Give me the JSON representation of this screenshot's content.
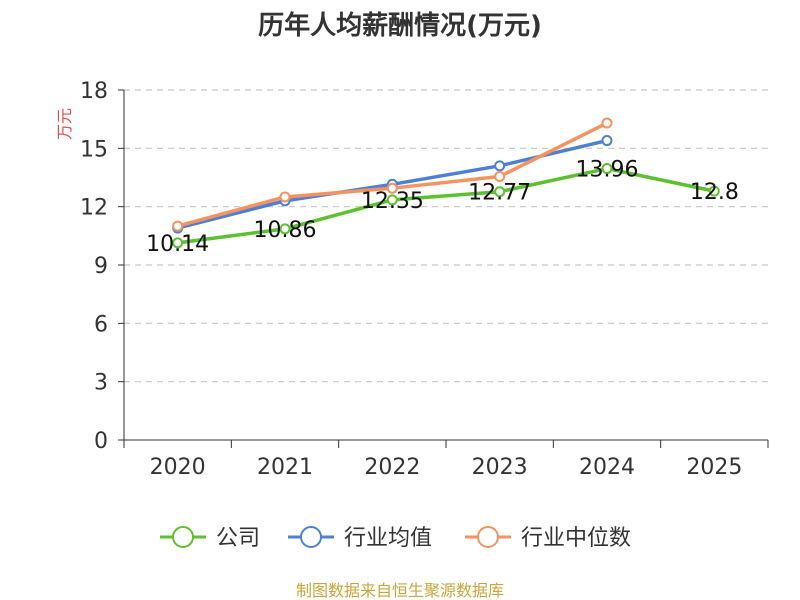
{
  "chart_data": {
    "type": "line",
    "title": "历年人均薪酬情况(万元)",
    "ylabel": "万元",
    "xlabel": "",
    "categories": [
      "2020",
      "2021",
      "2022",
      "2023",
      "2024",
      "2025"
    ],
    "ylim": [
      0,
      18
    ],
    "yticks": [
      0,
      3,
      6,
      9,
      12,
      15,
      18
    ],
    "grid": true,
    "legend_position": "bottom",
    "series": [
      {
        "name": "公司",
        "color": "#5CC12F",
        "values": [
          10.14,
          10.86,
          12.35,
          12.77,
          13.96,
          12.8
        ],
        "labels": [
          "10.14",
          "10.86",
          "12.35",
          "12.77",
          "13.96",
          "12.8"
        ]
      },
      {
        "name": "行业均值",
        "color": "#4E7FD8",
        "values": [
          10.9,
          12.3,
          13.15,
          14.1,
          15.4,
          null
        ]
      },
      {
        "name": "行业中位数",
        "color": "#F5935E",
        "values": [
          11.0,
          12.5,
          12.95,
          13.55,
          16.3,
          null
        ]
      }
    ]
  },
  "source": "制图数据来自恒生聚源数据库",
  "colors": {
    "source": "#C8A63C",
    "ylabel": "#E04B4B"
  }
}
